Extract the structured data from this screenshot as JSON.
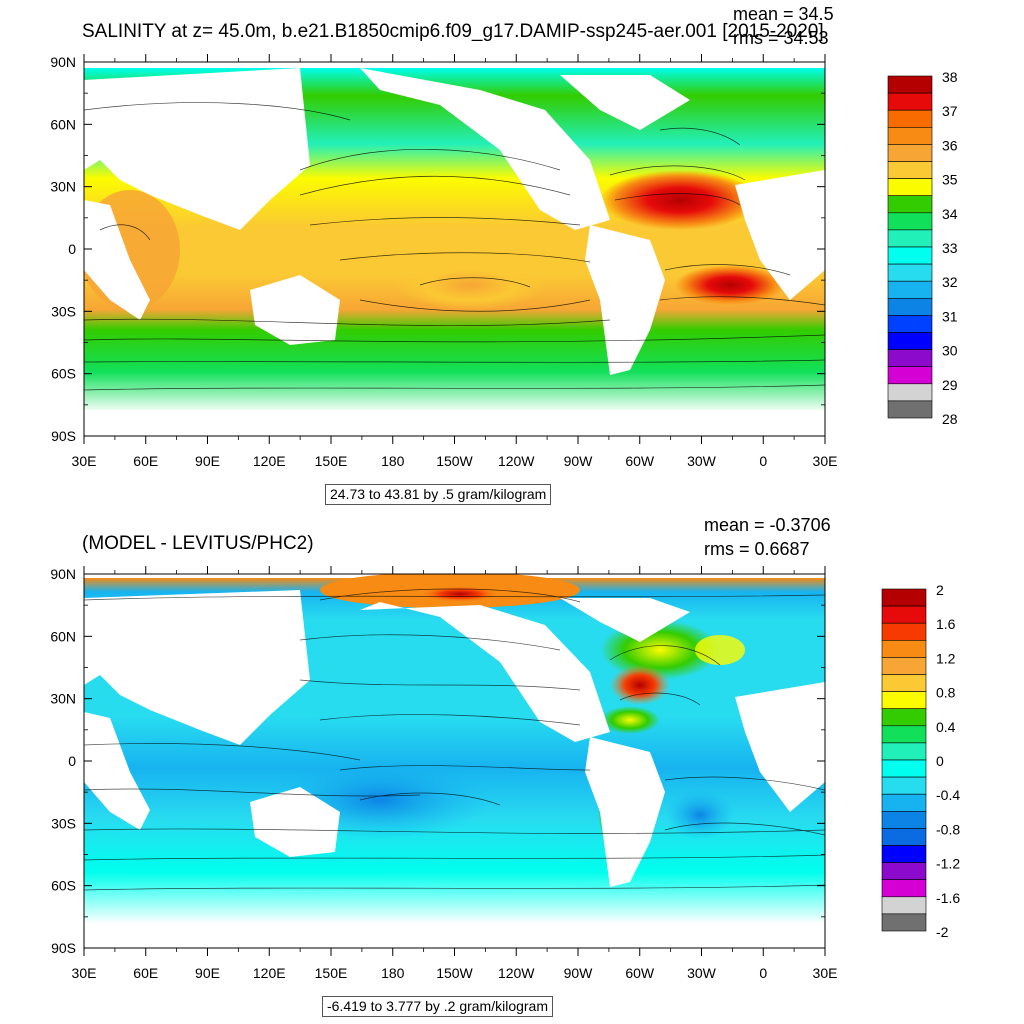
{
  "panel1": {
    "title": "SALINITY at z=  45.0m, b.e21.B1850cmip6.f09_g17.DAMIP-ssp245-aer.001 [2015-2020]",
    "mean_text": "mean = 34.5",
    "rms_text": "rms = 34.53",
    "range_text": "24.73 to 43.81 by .5 gram/kilogram",
    "colorbar_labels": [
      "38",
      "37",
      "36",
      "35",
      "34",
      "33",
      "32",
      "31",
      "30",
      "29",
      "28"
    ],
    "colorbar_colors": [
      "#b40000",
      "#e60a0a",
      "#f76b00",
      "#f78b14",
      "#f7a635",
      "#fbc933",
      "#fcfc00",
      "#33cc00",
      "#11e05a",
      "#22f0b9",
      "#00ffee",
      "#28dcf0",
      "#17b3f0",
      "#0c84e6",
      "#0040ff",
      "#0000ff",
      "#8c0acc",
      "#d400d4",
      "#d3d3d3",
      "#707070"
    ]
  },
  "panel2": {
    "title": "(MODEL - LEVITUS/PHC2)",
    "mean_text": "mean = -0.3706",
    "rms_text": "rms = 0.6687",
    "range_text": "-6.419 to 3.777 by .2 gram/kilogram",
    "colorbar_labels": [
      "2",
      "1.6",
      "1.2",
      "0.8",
      "0.4",
      "0",
      "-0.4",
      "-0.8",
      "-1.2",
      "-1.6",
      "-2"
    ],
    "colorbar_colors": [
      "#b40000",
      "#e60a0a",
      "#f73b00",
      "#f78b14",
      "#f7a635",
      "#fbc933",
      "#fcfc00",
      "#33cc00",
      "#11e05a",
      "#22f0b9",
      "#00ffee",
      "#28dcf0",
      "#17b3f0",
      "#0c84e6",
      "#0a6ce0",
      "#0000ff",
      "#8c0acc",
      "#d400d4",
      "#d3d3d3",
      "#707070"
    ]
  },
  "lat_labels": [
    "90N",
    "60N",
    "30N",
    "0",
    "30S",
    "60S",
    "90S"
  ],
  "lon_labels": [
    "30E",
    "60E",
    "90E",
    "120E",
    "150E",
    "180",
    "150W",
    "120W",
    "90W",
    "60W",
    "30W",
    "0",
    "30E"
  ],
  "colors": {
    "land": "#ffffff",
    "frame": "#000000",
    "contour": "#000000"
  },
  "chart_data": [
    {
      "type": "heatmap",
      "variable": "SALINITY",
      "depth": "45.0m",
      "title": "SALINITY at z=  45.0m, b.e21.B1850cmip6.f09_g17.DAMIP-ssp245-aer.001 [2015-2020]",
      "units": "gram/kilogram",
      "xlim": [
        "30E",
        "30E"
      ],
      "ylim": [
        "90S",
        "90N"
      ],
      "min": 24.73,
      "max": 43.81,
      "interval": 0.5,
      "colorbar_range": [
        28,
        38
      ],
      "mean": 34.5,
      "rms": 34.53
    },
    {
      "type": "heatmap",
      "title": "(MODEL - LEVITUS/PHC2)",
      "units": "gram/kilogram",
      "xlim": [
        "30E",
        "30E"
      ],
      "ylim": [
        "90S",
        "90N"
      ],
      "min": -6.419,
      "max": 3.777,
      "interval": 0.2,
      "colorbar_range": [
        -2,
        2
      ],
      "mean": -0.3706,
      "rms": 0.6687
    }
  ]
}
